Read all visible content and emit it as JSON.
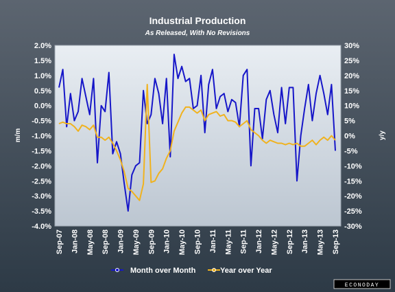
{
  "chart_data": {
    "type": "line",
    "title": "Industrial Production",
    "subtitle": "As Released, With No Revisions",
    "ylabel": "m/m",
    "y2label": "y/y",
    "ylim": [
      -4.0,
      2.0
    ],
    "y2lim": [
      -30,
      30
    ],
    "y_ticks": [
      "2.0%",
      "1.5%",
      "1.0%",
      "0.5%",
      "0.0%",
      "-0.5%",
      "-1.0%",
      "-1.5%",
      "-2.0%",
      "-2.5%",
      "-3.0%",
      "-3.5%",
      "-4.0%"
    ],
    "y2_ticks": [
      "30%",
      "25%",
      "20%",
      "15%",
      "10%",
      "5%",
      "0%",
      "-5%",
      "-10%",
      "-15%",
      "-20%",
      "-25%",
      "-30%"
    ],
    "x_ticks": [
      "Sep-07",
      "Jan-08",
      "May-08",
      "Sep-08",
      "Jan-09",
      "May-09",
      "Sep-09",
      "Jan-10",
      "May-10",
      "Sep-10",
      "Jan-11",
      "May-11",
      "Sep-11",
      "Jan-12",
      "May-12",
      "Sep-12",
      "Jan-13",
      "May-13",
      "Sep-13"
    ],
    "grid": false,
    "legend": "bottom",
    "series": [
      {
        "name": "Month over Month",
        "axis": "left",
        "color": "#1616c8",
        "values": [
          0.6,
          1.2,
          -0.7,
          0.4,
          -0.5,
          -0.2,
          0.9,
          0.3,
          -0.3,
          0.9,
          -1.9,
          0.0,
          -0.2,
          1.1,
          -1.6,
          -1.2,
          -1.6,
          -2.6,
          -3.5,
          -2.3,
          -2.0,
          -1.9,
          0.5,
          -0.6,
          -0.3,
          0.9,
          0.4,
          -0.6,
          0.9,
          -1.7,
          1.7,
          0.9,
          1.3,
          0.8,
          0.9,
          -0.1,
          0.0,
          1.0,
          -0.9,
          0.7,
          1.2,
          -0.1,
          0.3,
          0.4,
          -0.2,
          0.2,
          0.1,
          -0.7,
          1.0,
          1.2,
          -2.0,
          -0.1,
          -0.1,
          -1.1,
          0.2,
          0.5,
          -0.3,
          -0.9,
          0.6,
          -0.6,
          0.6,
          0.6,
          -2.5,
          -1.0,
          -0.1,
          0.7,
          -0.5,
          0.4,
          1.0,
          0.4,
          -0.3,
          0.7,
          -1.5
        ]
      },
      {
        "name": "Year over Year",
        "axis": "right",
        "color": "#f0b21e",
        "values": [
          4.0,
          4.5,
          4.0,
          4.0,
          3.0,
          1.5,
          3.5,
          3.0,
          2.0,
          3.5,
          -0.5,
          -0.5,
          -1.5,
          -0.5,
          -2.5,
          -5.0,
          -8.0,
          -12.0,
          -17.5,
          -18.5,
          -20.0,
          -21.5,
          -16.0,
          17.0,
          -15.5,
          -15.0,
          -12.5,
          -11.0,
          -7.5,
          -5.0,
          1.5,
          4.5,
          7.5,
          9.5,
          9.5,
          8.5,
          7.5,
          8.5,
          5.0,
          7.0,
          7.5,
          8.0,
          6.5,
          7.0,
          5.0,
          5.0,
          4.5,
          3.0,
          4.0,
          5.0,
          2.0,
          1.0,
          0.0,
          -1.5,
          -2.5,
          -1.5,
          -2.0,
          -2.5,
          -2.5,
          -3.0,
          -2.5,
          -3.0,
          -2.5,
          -3.5,
          -3.5,
          -2.5,
          -1.5,
          -3.0,
          -1.5,
          -0.5,
          -1.5,
          0.0,
          -1.5
        ]
      }
    ]
  },
  "watermark": "ECONODAY"
}
